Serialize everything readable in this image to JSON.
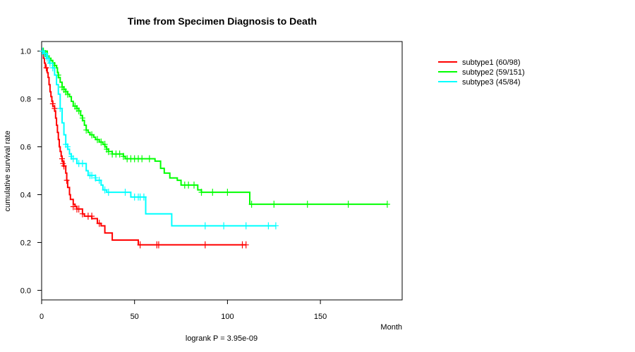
{
  "chart_data": {
    "type": "line",
    "subtype": "kaplan-meier",
    "title": "Time from Specimen Diagnosis to Death",
    "xlabel": "Month",
    "ylabel": "cumulative survival rate",
    "footnote": "logrank P = 3.95e-09",
    "xlim": [
      0,
      194
    ],
    "ylim": [
      -0.04,
      1.04
    ],
    "xticks": [
      0,
      50,
      100,
      150
    ],
    "yticks": [
      0.0,
      0.2,
      0.4,
      0.6,
      0.8,
      1.0
    ],
    "xtick_labels": [
      "0",
      "50",
      "100",
      "150"
    ],
    "ytick_labels": [
      "0.0",
      "0.2",
      "0.4",
      "0.6",
      "0.8",
      "1.0"
    ],
    "legend_position": "top-right, outside plot",
    "series": [
      {
        "name": "subtype1 (60/98)",
        "color": "#ff0000",
        "steps": [
          [
            0,
            1.0
          ],
          [
            1,
            0.97
          ],
          [
            1.5,
            0.95
          ],
          [
            2,
            0.93
          ],
          [
            3,
            0.91
          ],
          [
            3.5,
            0.89
          ],
          [
            4,
            0.86
          ],
          [
            4.5,
            0.83
          ],
          [
            5,
            0.81
          ],
          [
            5.5,
            0.79
          ],
          [
            6,
            0.77
          ],
          [
            7,
            0.75
          ],
          [
            7.5,
            0.72
          ],
          [
            8,
            0.69
          ],
          [
            8.5,
            0.66
          ],
          [
            9,
            0.63
          ],
          [
            9.5,
            0.6
          ],
          [
            10,
            0.58
          ],
          [
            10.5,
            0.56
          ],
          [
            11,
            0.54
          ],
          [
            12,
            0.52
          ],
          [
            13,
            0.49
          ],
          [
            13.5,
            0.46
          ],
          [
            14,
            0.43
          ],
          [
            15,
            0.4
          ],
          [
            15.5,
            0.38
          ],
          [
            17,
            0.36
          ],
          [
            18,
            0.35
          ],
          [
            19,
            0.34
          ],
          [
            22,
            0.32
          ],
          [
            23,
            0.31
          ],
          [
            27,
            0.3
          ],
          [
            30,
            0.28
          ],
          [
            32,
            0.27
          ],
          [
            34,
            0.24
          ],
          [
            38,
            0.21
          ],
          [
            52,
            0.19
          ],
          [
            110,
            0.19
          ]
        ],
        "censor": [
          [
            2.5,
            0.93
          ],
          [
            6,
            0.78
          ],
          [
            7,
            0.76
          ],
          [
            11,
            0.55
          ],
          [
            11.5,
            0.53
          ],
          [
            12,
            0.52
          ],
          [
            13.5,
            0.46
          ],
          [
            17,
            0.35
          ],
          [
            19,
            0.34
          ],
          [
            20,
            0.34
          ],
          [
            22,
            0.32
          ],
          [
            25,
            0.31
          ],
          [
            27,
            0.31
          ],
          [
            31,
            0.28
          ],
          [
            53,
            0.19
          ],
          [
            62,
            0.19
          ],
          [
            63,
            0.19
          ],
          [
            88,
            0.19
          ],
          [
            108,
            0.19
          ],
          [
            110,
            0.19
          ]
        ]
      },
      {
        "name": "subtype2 (59/151)",
        "color": "#00ff00",
        "steps": [
          [
            0,
            1.0
          ],
          [
            3,
            0.98
          ],
          [
            4,
            0.97
          ],
          [
            5,
            0.96
          ],
          [
            6,
            0.95
          ],
          [
            7,
            0.94
          ],
          [
            8,
            0.93
          ],
          [
            8.5,
            0.91
          ],
          [
            9,
            0.89
          ],
          [
            10,
            0.87
          ],
          [
            11,
            0.85
          ],
          [
            12,
            0.84
          ],
          [
            13,
            0.83
          ],
          [
            14,
            0.82
          ],
          [
            15,
            0.81
          ],
          [
            16,
            0.79
          ],
          [
            17,
            0.77
          ],
          [
            19,
            0.76
          ],
          [
            20,
            0.75
          ],
          [
            21,
            0.73
          ],
          [
            22,
            0.71
          ],
          [
            23,
            0.69
          ],
          [
            24,
            0.67
          ],
          [
            25,
            0.66
          ],
          [
            26,
            0.65
          ],
          [
            28,
            0.64
          ],
          [
            29,
            0.63
          ],
          [
            31,
            0.62
          ],
          [
            33,
            0.61
          ],
          [
            34,
            0.6
          ],
          [
            35,
            0.59
          ],
          [
            36,
            0.58
          ],
          [
            38,
            0.57
          ],
          [
            44,
            0.56
          ],
          [
            45,
            0.55
          ],
          [
            61,
            0.54
          ],
          [
            64,
            0.51
          ],
          [
            66,
            0.49
          ],
          [
            69,
            0.47
          ],
          [
            73,
            0.46
          ],
          [
            75,
            0.44
          ],
          [
            79,
            0.44
          ],
          [
            84,
            0.42
          ],
          [
            86,
            0.41
          ],
          [
            112,
            0.36
          ],
          [
            186,
            0.36
          ]
        ],
        "censor": [
          [
            1,
            1.0
          ],
          [
            2,
            0.99
          ],
          [
            6,
            0.95
          ],
          [
            7,
            0.94
          ],
          [
            9,
            0.9
          ],
          [
            11,
            0.85
          ],
          [
            12,
            0.84
          ],
          [
            13,
            0.83
          ],
          [
            14,
            0.82
          ],
          [
            18,
            0.77
          ],
          [
            19,
            0.76
          ],
          [
            20,
            0.75
          ],
          [
            22,
            0.72
          ],
          [
            24,
            0.67
          ],
          [
            27,
            0.65
          ],
          [
            30,
            0.63
          ],
          [
            32,
            0.62
          ],
          [
            34,
            0.61
          ],
          [
            35,
            0.59
          ],
          [
            36,
            0.58
          ],
          [
            38,
            0.57
          ],
          [
            40,
            0.57
          ],
          [
            42,
            0.57
          ],
          [
            44,
            0.56
          ],
          [
            46,
            0.55
          ],
          [
            48,
            0.55
          ],
          [
            50,
            0.55
          ],
          [
            52,
            0.55
          ],
          [
            54,
            0.55
          ],
          [
            58,
            0.55
          ],
          [
            77,
            0.44
          ],
          [
            79,
            0.44
          ],
          [
            82,
            0.44
          ],
          [
            86,
            0.41
          ],
          [
            92,
            0.41
          ],
          [
            100,
            0.41
          ],
          [
            113,
            0.36
          ],
          [
            125,
            0.36
          ],
          [
            143,
            0.36
          ],
          [
            165,
            0.36
          ],
          [
            186,
            0.36
          ]
        ]
      },
      {
        "name": "subtype3 (45/84)",
        "color": "#00ffff",
        "steps": [
          [
            0,
            1.0
          ],
          [
            1,
            0.99
          ],
          [
            3,
            0.97
          ],
          [
            4,
            0.95
          ],
          [
            6,
            0.93
          ],
          [
            7,
            0.9
          ],
          [
            8,
            0.86
          ],
          [
            9,
            0.82
          ],
          [
            10,
            0.76
          ],
          [
            11,
            0.7
          ],
          [
            12,
            0.65
          ],
          [
            13,
            0.61
          ],
          [
            14,
            0.59
          ],
          [
            15,
            0.57
          ],
          [
            16,
            0.55
          ],
          [
            19,
            0.53
          ],
          [
            24,
            0.5
          ],
          [
            25,
            0.48
          ],
          [
            29,
            0.46
          ],
          [
            32,
            0.44
          ],
          [
            33,
            0.42
          ],
          [
            35,
            0.41
          ],
          [
            48,
            0.39
          ],
          [
            56,
            0.32
          ],
          [
            70,
            0.27
          ],
          [
            126,
            0.27
          ]
        ],
        "censor": [
          [
            0.5,
            1.0
          ],
          [
            1.5,
            0.99
          ],
          [
            2.5,
            0.98
          ],
          [
            3,
            0.97
          ],
          [
            4.5,
            0.95
          ],
          [
            6,
            0.93
          ],
          [
            10,
            0.76
          ],
          [
            13,
            0.61
          ],
          [
            14,
            0.6
          ],
          [
            16,
            0.56
          ],
          [
            17,
            0.55
          ],
          [
            20,
            0.53
          ],
          [
            22,
            0.53
          ],
          [
            26,
            0.48
          ],
          [
            27,
            0.48
          ],
          [
            29,
            0.47
          ],
          [
            31,
            0.46
          ],
          [
            34,
            0.42
          ],
          [
            36,
            0.41
          ],
          [
            45,
            0.41
          ],
          [
            50,
            0.39
          ],
          [
            52,
            0.39
          ],
          [
            53,
            0.39
          ],
          [
            55,
            0.39
          ],
          [
            88,
            0.27
          ],
          [
            98,
            0.27
          ],
          [
            110,
            0.27
          ],
          [
            122,
            0.27
          ],
          [
            126,
            0.27
          ]
        ]
      }
    ]
  }
}
